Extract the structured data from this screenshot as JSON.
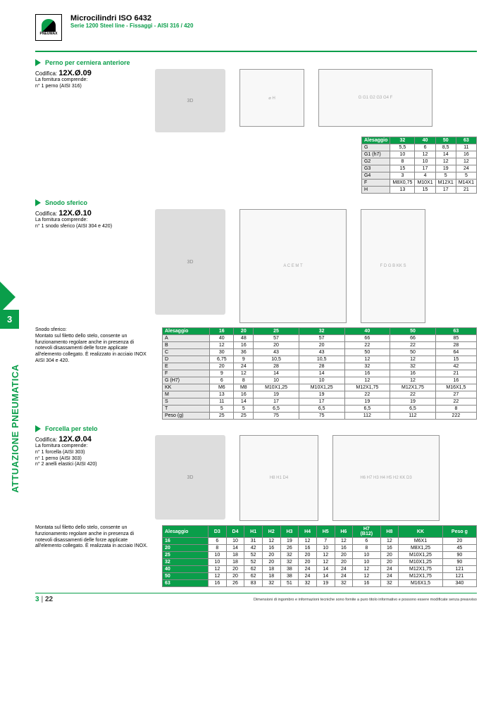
{
  "header": {
    "title": "Microcilindri ISO 6432",
    "subtitle": "Serie 1200 Steel line - Fissaggi - AISI 316 / 420",
    "logo_text": "PNEUMAX"
  },
  "side": {
    "tab": "3",
    "label": "ATTUAZIONE PNEUMATICA"
  },
  "sec1": {
    "title": "Perno per cerniera anteriore",
    "codifica_label": "Codifica:",
    "codifica": "12X.Ø.09",
    "supply": "La fornitura comprende:\nn° 1 perno (AISI 316)",
    "cols": [
      "Alesaggio",
      "32",
      "40",
      "50",
      "63"
    ],
    "rows": [
      [
        "G",
        "5,5",
        "6",
        "8,5",
        "11"
      ],
      [
        "G1 (h7)",
        "10",
        "12",
        "14",
        "16"
      ],
      [
        "G2",
        "8",
        "10",
        "12",
        "12"
      ],
      [
        "G3",
        "15",
        "17",
        "19",
        "24"
      ],
      [
        "G4",
        "3",
        "4",
        "5",
        "5"
      ],
      [
        "F",
        "M8X0,75",
        "M10X1",
        "M12X1",
        "M14X1"
      ],
      [
        "H",
        "13",
        "15",
        "17",
        "21"
      ]
    ]
  },
  "sec2": {
    "title": "Snodo sferico",
    "codifica_label": "Codifica:",
    "codifica": "12X.Ø.10",
    "supply": "La fornitura comprende:\nn° 1 snodo sferico (AISI 304 e 420)",
    "note": "Snodo sferico:\nMontato sul filetto dello stelo, consente un funzionamento regolare anche in presenza di notevoli disassamenti delle forze applicate all'elemento collegato. È realizzato in acciaio INOX AISI 304 e 420.",
    "cols": [
      "Alesaggio",
      "16",
      "20",
      "25",
      "32",
      "40",
      "50",
      "63"
    ],
    "rows": [
      [
        "A",
        "40",
        "48",
        "57",
        "57",
        "66",
        "66",
        "85"
      ],
      [
        "B",
        "12",
        "16",
        "20",
        "20",
        "22",
        "22",
        "28"
      ],
      [
        "C",
        "30",
        "36",
        "43",
        "43",
        "50",
        "50",
        "64"
      ],
      [
        "D",
        "6,75",
        "9",
        "10,5",
        "10,5",
        "12",
        "12",
        "15"
      ],
      [
        "E",
        "20",
        "24",
        "28",
        "28",
        "32",
        "32",
        "42"
      ],
      [
        "F",
        "9",
        "12",
        "14",
        "14",
        "16",
        "16",
        "21"
      ],
      [
        "G (H7)",
        "6",
        "8",
        "10",
        "10",
        "12",
        "12",
        "16"
      ],
      [
        "KK",
        "M6",
        "M8",
        "M10X1,25",
        "M10X1,25",
        "M12X1,75",
        "M12X1,75",
        "M16X1,5"
      ],
      [
        "M",
        "13",
        "16",
        "19",
        "19",
        "22",
        "22",
        "27"
      ],
      [
        "S",
        "11",
        "14",
        "17",
        "17",
        "19",
        "19",
        "22"
      ],
      [
        "T",
        "5",
        "5",
        "6,5",
        "6,5",
        "6,5",
        "6,5",
        "8"
      ],
      [
        "Peso (g)",
        "25",
        "25",
        "75",
        "75",
        "112",
        "112",
        "222"
      ]
    ]
  },
  "sec3": {
    "title": "Forcella per stelo",
    "codifica_label": "Codifica:",
    "codifica": "12X.Ø.04",
    "supply": "La fornitura comprende:\nn° 1 forcella (AISI 303)\nn° 1 perno (AISI 303)\nn° 2 anelli elastici (AISI 420)",
    "note": "Montata sul filetto dello stelo, consente un funzionamento regolare anche in presenza di notevoli disassamenti delle forze applicate all'elemento collegato. È realizzata in acciaio INOX.",
    "cols": [
      "Alesaggio",
      "D3",
      "D4",
      "H1",
      "H2",
      "H3",
      "H4",
      "H5",
      "H6",
      "H7\n(B12)",
      "H8",
      "KK",
      "Peso g"
    ],
    "rows": [
      [
        "16",
        "6",
        "10",
        "31",
        "12",
        "19",
        "12",
        "7",
        "12",
        "6",
        "12",
        "M6X1",
        "20"
      ],
      [
        "20",
        "8",
        "14",
        "42",
        "16",
        "26",
        "16",
        "10",
        "16",
        "8",
        "16",
        "M8X1,25",
        "45"
      ],
      [
        "25",
        "10",
        "18",
        "52",
        "20",
        "32",
        "20",
        "12",
        "20",
        "10",
        "20",
        "M10X1,25",
        "90"
      ],
      [
        "32",
        "10",
        "18",
        "52",
        "20",
        "32",
        "20",
        "12",
        "20",
        "10",
        "20",
        "M10X1,25",
        "90"
      ],
      [
        "40",
        "12",
        "20",
        "62",
        "18",
        "38",
        "24",
        "14",
        "24",
        "12",
        "24",
        "M12X1,75",
        "121"
      ],
      [
        "50",
        "12",
        "20",
        "62",
        "18",
        "38",
        "24",
        "14",
        "24",
        "12",
        "24",
        "M12X1,75",
        "121"
      ],
      [
        "63",
        "16",
        "26",
        "83",
        "32",
        "51",
        "32",
        "19",
        "32",
        "16",
        "32",
        "M16X1,5",
        "340"
      ]
    ]
  },
  "footer": {
    "page": "3",
    "total": "22",
    "disclaimer": "Dimensioni di ingombro e informazioni tecniche sono fornite a puro titolo informativo e possono essere modificate senza preavviso"
  }
}
